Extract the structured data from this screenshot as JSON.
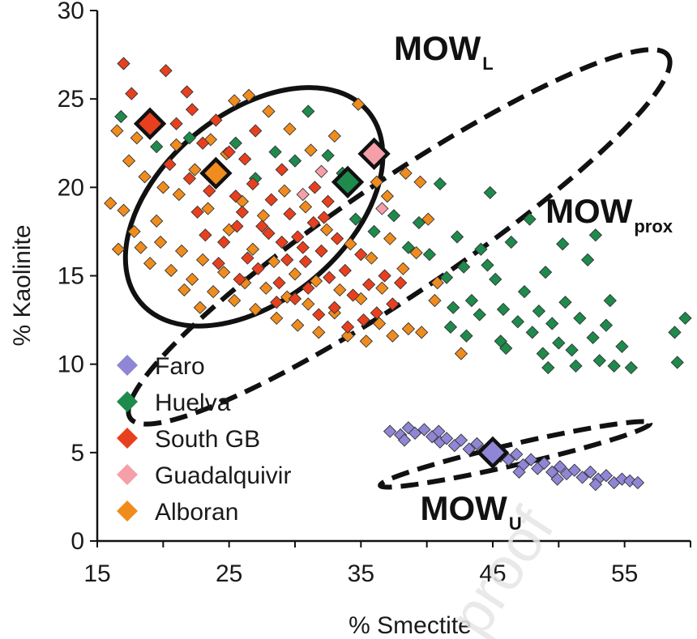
{
  "chart_data": {
    "type": "scatter",
    "title": "",
    "xlabel": "% Smectite",
    "ylabel": "% Kaolinite",
    "xlim": [
      15,
      60
    ],
    "ylim": [
      0,
      30
    ],
    "xticks": [
      15,
      25,
      35,
      45,
      55
    ],
    "yticks": [
      0,
      5,
      10,
      15,
      20,
      25,
      30
    ],
    "grid": false,
    "legend_position": "bottom-left",
    "series": [
      {
        "name": "Faro",
        "color": "#8f86d6",
        "marker": "diamond",
        "mean": [
          45.0,
          5.0
        ],
        "points": [
          [
            37.2,
            6.2
          ],
          [
            38.0,
            6.0
          ],
          [
            38.6,
            6.4
          ],
          [
            39.1,
            6.1
          ],
          [
            39.8,
            6.3
          ],
          [
            40.4,
            5.9
          ],
          [
            41.0,
            5.6
          ],
          [
            41.5,
            5.8
          ],
          [
            42.1,
            5.4
          ],
          [
            42.6,
            5.7
          ],
          [
            43.2,
            5.2
          ],
          [
            43.8,
            5.5
          ],
          [
            44.3,
            5.1
          ],
          [
            45.6,
            4.8
          ],
          [
            46.2,
            4.6
          ],
          [
            46.8,
            4.9
          ],
          [
            47.3,
            4.3
          ],
          [
            47.9,
            4.6
          ],
          [
            48.4,
            4.1
          ],
          [
            48.9,
            4.4
          ],
          [
            49.5,
            3.9
          ],
          [
            50.1,
            4.2
          ],
          [
            50.6,
            3.8
          ],
          [
            51.2,
            4.0
          ],
          [
            51.8,
            3.6
          ],
          [
            52.4,
            3.9
          ],
          [
            53.0,
            3.5
          ],
          [
            53.6,
            3.7
          ],
          [
            54.2,
            3.3
          ],
          [
            54.8,
            3.5
          ],
          [
            55.4,
            3.4
          ],
          [
            56.0,
            3.3
          ],
          [
            38.3,
            5.7
          ],
          [
            40.9,
            6.2
          ],
          [
            44.9,
            4.7
          ],
          [
            47.0,
            3.9
          ],
          [
            49.9,
            3.5
          ],
          [
            52.8,
            3.2
          ]
        ]
      },
      {
        "name": "Huelva",
        "color": "#1e8a4c",
        "marker": "diamond",
        "mean": [
          34.0,
          20.3
        ],
        "points": [
          [
            16.8,
            24.0
          ],
          [
            19.5,
            22.3
          ],
          [
            22.0,
            22.8
          ],
          [
            25.5,
            22.5
          ],
          [
            27.0,
            20.5
          ],
          [
            28.5,
            22.0
          ],
          [
            30.0,
            21.5
          ],
          [
            31.0,
            24.3
          ],
          [
            32.5,
            21.8
          ],
          [
            33.6,
            20.8
          ],
          [
            34.6,
            18.2
          ],
          [
            36.0,
            17.5
          ],
          [
            37.5,
            18.4
          ],
          [
            38.6,
            16.6
          ],
          [
            39.4,
            18.0
          ],
          [
            40.2,
            16.2
          ],
          [
            41.0,
            20.2
          ],
          [
            41.5,
            14.9
          ],
          [
            42.0,
            13.2
          ],
          [
            42.8,
            15.5
          ],
          [
            43.4,
            13.6
          ],
          [
            44.0,
            12.8
          ],
          [
            44.6,
            15.6
          ],
          [
            45.2,
            14.8
          ],
          [
            45.8,
            13.1
          ],
          [
            46.4,
            16.9
          ],
          [
            46.9,
            12.4
          ],
          [
            47.4,
            14.1
          ],
          [
            48.0,
            11.8
          ],
          [
            48.5,
            13.0
          ],
          [
            49.0,
            15.2
          ],
          [
            49.5,
            12.3
          ],
          [
            50.0,
            11.2
          ],
          [
            50.5,
            13.5
          ],
          [
            51.0,
            10.8
          ],
          [
            51.6,
            12.6
          ],
          [
            52.2,
            15.9
          ],
          [
            52.6,
            11.5
          ],
          [
            53.1,
            10.2
          ],
          [
            53.6,
            12.2
          ],
          [
            54.2,
            9.9
          ],
          [
            54.8,
            11.0
          ],
          [
            55.5,
            9.8
          ],
          [
            58.8,
            11.8
          ],
          [
            59.6,
            12.6
          ],
          [
            59.0,
            10.1
          ],
          [
            44.8,
            19.7
          ],
          [
            47.8,
            18.2
          ],
          [
            50.3,
            16.8
          ],
          [
            52.8,
            17.3
          ],
          [
            43.0,
            11.6
          ],
          [
            45.6,
            11.3
          ],
          [
            48.8,
            10.6
          ],
          [
            51.3,
            9.9
          ],
          [
            53.9,
            13.6
          ],
          [
            41.8,
            12.1
          ],
          [
            46.0,
            10.9
          ],
          [
            49.2,
            9.8
          ],
          [
            44.1,
            16.5
          ],
          [
            42.3,
            17.2
          ]
        ]
      },
      {
        "name": "South GB",
        "color": "#e8401e",
        "marker": "diamond",
        "mean": [
          19.0,
          23.6
        ],
        "points": [
          [
            17.0,
            27.0
          ],
          [
            20.2,
            26.6
          ],
          [
            21.8,
            25.4
          ],
          [
            17.6,
            25.3
          ],
          [
            19.0,
            24.1
          ],
          [
            21.0,
            23.6
          ],
          [
            22.2,
            24.4
          ],
          [
            23.0,
            22.5
          ],
          [
            24.0,
            23.8
          ],
          [
            25.0,
            22.0
          ],
          [
            20.5,
            21.3
          ],
          [
            22.0,
            20.5
          ],
          [
            23.5,
            19.8
          ],
          [
            24.5,
            20.7
          ],
          [
            25.5,
            19.5
          ],
          [
            26.0,
            18.6
          ],
          [
            26.8,
            20.2
          ],
          [
            27.5,
            17.8
          ],
          [
            28.2,
            19.3
          ],
          [
            29.0,
            16.9
          ],
          [
            29.6,
            18.5
          ],
          [
            30.2,
            17.2
          ],
          [
            30.8,
            15.8
          ],
          [
            31.4,
            18.0
          ],
          [
            32.0,
            16.4
          ],
          [
            32.6,
            14.9
          ],
          [
            33.2,
            17.1
          ],
          [
            33.8,
            15.3
          ],
          [
            34.4,
            13.9
          ],
          [
            35.0,
            16.2
          ],
          [
            35.6,
            14.5
          ],
          [
            36.2,
            12.9
          ],
          [
            36.8,
            15.0
          ],
          [
            37.4,
            13.4
          ],
          [
            38.0,
            14.6
          ],
          [
            24.6,
            16.9
          ],
          [
            25.6,
            17.8
          ],
          [
            26.4,
            16.0
          ],
          [
            27.2,
            15.4
          ],
          [
            28.0,
            17.4
          ],
          [
            28.8,
            14.6
          ],
          [
            29.4,
            15.9
          ],
          [
            30.0,
            13.7
          ],
          [
            31.0,
            14.3
          ],
          [
            31.8,
            12.8
          ],
          [
            33.0,
            13.2
          ],
          [
            34.0,
            12.1
          ],
          [
            35.2,
            12.5
          ],
          [
            27.0,
            23.2
          ],
          [
            29.0,
            21.0
          ],
          [
            31.5,
            20.0
          ],
          [
            32.5,
            19.2
          ],
          [
            26.2,
            21.6
          ],
          [
            23.2,
            17.3
          ],
          [
            22.6,
            18.6
          ],
          [
            24.2,
            15.7
          ],
          [
            25.8,
            14.8
          ],
          [
            28.6,
            13.5
          ],
          [
            30.6,
            16.6
          ],
          [
            32.2,
            18.3
          ]
        ]
      },
      {
        "name": "Guadalquivir",
        "color": "#f5a0a8",
        "marker": "diamond",
        "mean": [
          36.0,
          21.9
        ],
        "points": [
          [
            36.6,
            18.8
          ],
          [
            32.0,
            20.9
          ],
          [
            30.6,
            19.6
          ]
        ]
      },
      {
        "name": "Alboran",
        "color": "#f08c1e",
        "marker": "diamond",
        "mean": [
          24.0,
          20.8
        ],
        "points": [
          [
            16.5,
            23.2
          ],
          [
            18.0,
            22.8
          ],
          [
            18.6,
            20.6
          ],
          [
            19.5,
            18.1
          ],
          [
            20.0,
            20.0
          ],
          [
            21.2,
            19.6
          ],
          [
            22.4,
            21.0
          ],
          [
            23.4,
            18.8
          ],
          [
            24.8,
            21.9
          ],
          [
            25.4,
            24.9
          ],
          [
            26.5,
            25.2
          ],
          [
            28.0,
            24.3
          ],
          [
            29.6,
            23.3
          ],
          [
            31.2,
            22.1
          ],
          [
            33.0,
            22.9
          ],
          [
            34.8,
            24.7
          ],
          [
            36.2,
            20.3
          ],
          [
            37.0,
            19.5
          ],
          [
            38.4,
            20.8
          ],
          [
            39.5,
            20.3
          ],
          [
            40.1,
            18.2
          ],
          [
            16.0,
            19.1
          ],
          [
            17.0,
            18.7
          ],
          [
            17.8,
            17.5
          ],
          [
            18.3,
            16.6
          ],
          [
            19.0,
            15.7
          ],
          [
            19.8,
            16.9
          ],
          [
            20.6,
            15.3
          ],
          [
            21.4,
            16.4
          ],
          [
            22.2,
            14.8
          ],
          [
            23.0,
            15.9
          ],
          [
            23.8,
            14.1
          ],
          [
            24.6,
            15.2
          ],
          [
            25.4,
            13.6
          ],
          [
            26.2,
            14.6
          ],
          [
            27.0,
            13.1
          ],
          [
            27.8,
            14.3
          ],
          [
            28.6,
            12.6
          ],
          [
            29.4,
            13.8
          ],
          [
            30.2,
            12.2
          ],
          [
            31.0,
            13.4
          ],
          [
            31.8,
            11.8
          ],
          [
            33.0,
            12.9
          ],
          [
            34.0,
            11.6
          ],
          [
            35.4,
            11.3
          ],
          [
            36.4,
            12.3
          ],
          [
            37.4,
            11.6
          ],
          [
            38.6,
            12.0
          ],
          [
            39.6,
            11.8
          ],
          [
            40.6,
            13.6
          ],
          [
            42.6,
            10.6
          ],
          [
            16.6,
            16.5
          ],
          [
            17.4,
            21.5
          ],
          [
            21.0,
            22.4
          ],
          [
            23.6,
            22.7
          ],
          [
            26.0,
            19.2
          ],
          [
            27.6,
            18.4
          ],
          [
            29.2,
            19.8
          ],
          [
            30.8,
            18.9
          ],
          [
            32.4,
            17.6
          ],
          [
            34.2,
            16.8
          ],
          [
            35.8,
            16.0
          ],
          [
            37.2,
            17.1
          ],
          [
            38.2,
            15.4
          ],
          [
            39.2,
            16.3
          ],
          [
            40.8,
            14.6
          ],
          [
            25.0,
            17.6
          ],
          [
            26.8,
            16.5
          ],
          [
            28.4,
            15.8
          ],
          [
            30.0,
            15.1
          ],
          [
            31.6,
            14.7
          ],
          [
            33.4,
            14.2
          ],
          [
            35.0,
            13.7
          ],
          [
            36.6,
            14.3
          ],
          [
            22.8,
            13.2
          ],
          [
            21.6,
            14.2
          ]
        ]
      }
    ],
    "annotations": [
      {
        "text": "MOW",
        "subscript": "L",
        "at": [
          37.5,
          27.2
        ]
      },
      {
        "text": "MOW",
        "subscript": "prox",
        "at": [
          49.0,
          18.0
        ]
      },
      {
        "text": "MOW",
        "subscript": "U",
        "at": [
          39.5,
          1.2
        ]
      }
    ],
    "envelopes": [
      {
        "name": "MOW_L",
        "style": "solid",
        "center": [
          26.9,
          18.9
        ],
        "rx": 9.77,
        "ry": 5.84,
        "angle_deg": -40
      },
      {
        "name": "MOW_prox",
        "style": "dashed",
        "center": [
          37.9,
          17.2
        ],
        "rx": 22.0,
        "ry": 3.45,
        "angle_deg": -34
      },
      {
        "name": "MOW_U",
        "style": "dashed",
        "center": [
          46.7,
          4.9
        ],
        "rx": 10.3,
        "ry": 0.6,
        "angle_deg": -13
      }
    ]
  },
  "watermark": "proof"
}
